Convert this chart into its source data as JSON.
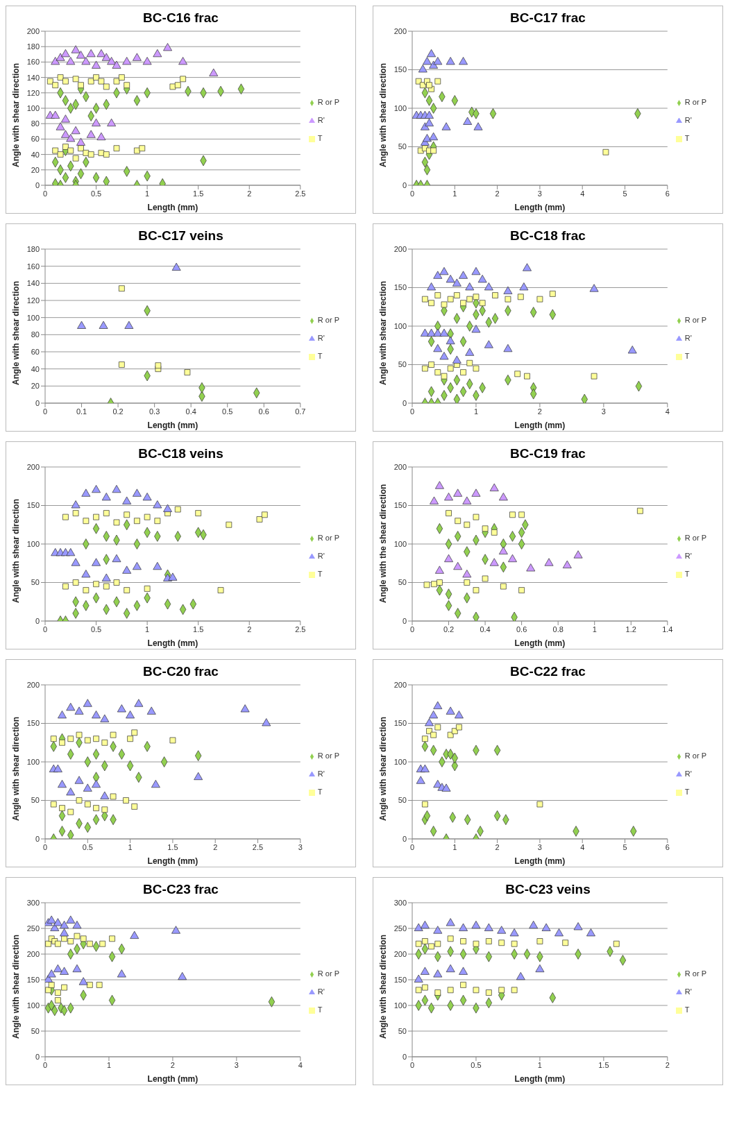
{
  "chart_data": [
    {
      "type": "scatter",
      "title": "BC-C16 frac",
      "xlabel": "Length (mm)",
      "ylabel": "Angle with shear direction",
      "xlim": [
        0,
        2.5
      ],
      "xticks": [
        0,
        0.5,
        1,
        1.5,
        2,
        2.5
      ],
      "ylim": [
        0,
        200
      ],
      "yticks": [
        0,
        20,
        40,
        60,
        80,
        100,
        120,
        140,
        160,
        180,
        200
      ],
      "grid": "y",
      "legend": "right",
      "series": [
        {
          "name": "R or P",
          "color": "#92d050",
          "marker": "diamond",
          "x": [
            0.15,
            0.2,
            0.25,
            0.3,
            0.35,
            0.4,
            0.45,
            0.5,
            0.6,
            0.7,
            0.8,
            0.9,
            1,
            1.4,
            1.55,
            1.72,
            1.92,
            0.1,
            0.15,
            0.2,
            0.25,
            0.3,
            0.35,
            0.4,
            0.5,
            0.6,
            0.8,
            1,
            1.15,
            1.55,
            0.15,
            0.3,
            0.9,
            0.2,
            0.1
          ],
          "values": [
            120,
            110,
            100,
            105,
            125,
            115,
            90,
            100,
            105,
            120,
            125,
            110,
            120,
            122,
            120,
            122,
            125,
            30,
            20,
            10,
            25,
            5,
            15,
            30,
            10,
            5,
            18,
            12,
            2,
            32,
            0,
            0,
            0,
            45,
            2
          ]
        },
        {
          "name": "T",
          "color": "#ffff99",
          "marker": "square",
          "x": [
            0.05,
            0.1,
            0.15,
            0.2,
            0.3,
            0.35,
            0.45,
            0.5,
            0.55,
            0.6,
            0.7,
            0.75,
            0.8,
            1.25,
            1.35,
            1.3,
            0.1,
            0.15,
            0.2,
            0.25,
            0.3,
            0.35,
            0.4,
            0.45,
            0.55,
            0.6,
            0.7,
            0.9,
            0.95
          ],
          "values": [
            135,
            130,
            140,
            135,
            138,
            130,
            135,
            140,
            135,
            128,
            135,
            140,
            130,
            128,
            138,
            130,
            45,
            40,
            50,
            45,
            35,
            48,
            42,
            40,
            42,
            40,
            48,
            45,
            48
          ]
        },
        {
          "name": "R'",
          "color": "#cc99ff",
          "marker": "triangle",
          "x": [
            0.05,
            0.1,
            0.1,
            0.15,
            0.2,
            0.25,
            0.3,
            0.35,
            0.4,
            0.45,
            0.5,
            0.55,
            0.6,
            0.65,
            0.7,
            0.8,
            0.9,
            1,
            1.1,
            1.2,
            1.35,
            1.65,
            0.15,
            0.2,
            0.25,
            0.3,
            0.35,
            0.45,
            0.5,
            0.55,
            0.65,
            0.2
          ],
          "values": [
            90,
            90,
            160,
            165,
            170,
            160,
            175,
            168,
            160,
            170,
            155,
            170,
            165,
            160,
            155,
            160,
            165,
            160,
            170,
            178,
            160,
            145,
            75,
            65,
            60,
            70,
            55,
            65,
            80,
            62,
            80,
            85
          ]
        }
      ]
    },
    {
      "type": "scatter",
      "title": "BC-C17 frac",
      "xlabel": "Length (mm)",
      "ylabel": "Angle with shear direction",
      "xlim": [
        0,
        6
      ],
      "xticks": [
        0,
        1,
        2,
        3,
        4,
        5,
        6
      ],
      "ylim": [
        0,
        200
      ],
      "yticks": [
        0,
        50,
        100,
        150,
        200
      ],
      "grid": "y",
      "legend": "right",
      "series": [
        {
          "name": "R or P",
          "color": "#92d050",
          "marker": "diamond",
          "x": [
            0.1,
            0.2,
            0.35,
            0.3,
            0.4,
            0.35,
            0.3,
            0.4,
            0.5,
            0.7,
            1,
            1.4,
            1.5,
            1.9,
            5.3,
            0.5
          ],
          "values": [
            0,
            0,
            0,
            30,
            40,
            20,
            120,
            110,
            100,
            115,
            110,
            95,
            93,
            93,
            93,
            50
          ]
        },
        {
          "name": "T",
          "color": "#ffff99",
          "marker": "square",
          "x": [
            0.15,
            0.25,
            0.35,
            0.45,
            0.4,
            0.6,
            0.2,
            0.3,
            0.4,
            0.5,
            4.55
          ],
          "values": [
            135,
            130,
            135,
            125,
            130,
            135,
            45,
            48,
            45,
            45,
            43
          ]
        },
        {
          "name": "R'",
          "color": "#9999ff",
          "marker": "triangle",
          "x": [
            0.1,
            0.2,
            0.3,
            0.4,
            0.3,
            0.35,
            0.3,
            0.25,
            0.35,
            0.45,
            0.5,
            0.6,
            0.9,
            1.2,
            0.8,
            1.3,
            1.55,
            0.5,
            0.4
          ],
          "values": [
            90,
            90,
            90,
            90,
            55,
            60,
            75,
            150,
            160,
            170,
            155,
            160,
            160,
            160,
            75,
            82,
            75,
            62,
            80
          ]
        }
      ]
    },
    {
      "type": "scatter",
      "title": "BC-C17 veins",
      "xlabel": "Length (mm)",
      "ylabel": "Angle with shear direction",
      "xlim": [
        0,
        0.7
      ],
      "xticks": [
        0,
        0.1,
        0.2,
        0.3,
        0.4,
        0.5,
        0.6,
        0.7
      ],
      "ylim": [
        0,
        180
      ],
      "yticks": [
        0,
        20,
        40,
        60,
        80,
        100,
        120,
        140,
        160,
        180
      ],
      "grid": "y",
      "legend": "right",
      "series": [
        {
          "name": "R or P",
          "color": "#92d050",
          "marker": "diamond",
          "x": [
            0.18,
            0.28,
            0.28,
            0.43,
            0.43,
            0.58
          ],
          "values": [
            0,
            32,
            108,
            8,
            18,
            12
          ]
        },
        {
          "name": "T",
          "color": "#ffff99",
          "marker": "square",
          "x": [
            0.21,
            0.21,
            0.31,
            0.31,
            0.39
          ],
          "values": [
            134,
            45,
            40,
            44,
            36
          ]
        },
        {
          "name": "R'",
          "color": "#9999ff",
          "marker": "triangle",
          "x": [
            0.1,
            0.16,
            0.23,
            0.36
          ],
          "values": [
            90,
            90,
            90,
            158
          ]
        }
      ]
    },
    {
      "type": "scatter",
      "title": "BC-C18 frac",
      "xlabel": "Length (mm)",
      "ylabel": "Angle with shear direction",
      "xlim": [
        0,
        4
      ],
      "xticks": [
        0,
        1,
        2,
        3,
        4
      ],
      "ylim": [
        0,
        200
      ],
      "yticks": [
        0,
        50,
        100,
        150,
        200
      ],
      "grid": "y",
      "legend": "right",
      "series": [
        {
          "name": "R or P",
          "color": "#92d050",
          "marker": "diamond",
          "x": [
            0.2,
            0.3,
            0.4,
            0.5,
            0.6,
            0.7,
            0.8,
            0.9,
            1,
            1.1,
            1.5,
            1.9,
            1.9,
            2.7,
            3.55,
            0.5,
            0.7,
            0.3,
            0.4,
            0.5,
            0.6,
            0.7,
            0.8,
            0.9,
            1,
            1.1,
            1.2,
            1.3,
            1.5,
            1.9,
            2.2,
            0.6,
            0.8,
            1,
            0.3
          ],
          "values": [
            0,
            0,
            0,
            10,
            20,
            30,
            15,
            25,
            10,
            20,
            30,
            20,
            12,
            5,
            22,
            30,
            5,
            15,
            100,
            120,
            90,
            110,
            125,
            100,
            115,
            120,
            105,
            110,
            120,
            118,
            115,
            70,
            80,
            130,
            80
          ]
        },
        {
          "name": "T",
          "color": "#ffff99",
          "marker": "square",
          "x": [
            0.2,
            0.3,
            0.4,
            0.5,
            0.6,
            0.7,
            0.8,
            0.9,
            1,
            1.1,
            1.3,
            1.5,
            1.7,
            2,
            2.2,
            0.2,
            0.3,
            0.4,
            0.5,
            0.6,
            0.7,
            0.8,
            0.9,
            1,
            1.65,
            1.8,
            2.85
          ],
          "values": [
            135,
            130,
            140,
            128,
            135,
            140,
            130,
            135,
            138,
            130,
            140,
            135,
            138,
            135,
            142,
            45,
            50,
            40,
            35,
            45,
            50,
            40,
            52,
            45,
            38,
            35,
            35
          ]
        },
        {
          "name": "R'",
          "color": "#9999ff",
          "marker": "triangle",
          "x": [
            0.2,
            0.3,
            0.4,
            0.5,
            0.3,
            0.4,
            0.5,
            0.6,
            0.7,
            0.8,
            0.9,
            1,
            1.1,
            1.2,
            1.5,
            1.8,
            1.75,
            2.85,
            0.4,
            0.5,
            0.6,
            0.7,
            0.9,
            1,
            1.2,
            1.5,
            3.45
          ],
          "values": [
            90,
            90,
            90,
            90,
            150,
            165,
            170,
            160,
            155,
            165,
            150,
            170,
            160,
            150,
            145,
            175,
            150,
            148,
            70,
            60,
            80,
            55,
            65,
            95,
            75,
            70,
            68
          ]
        }
      ]
    },
    {
      "type": "scatter",
      "title": "BC-C18 veins",
      "xlabel": "Length (mm)",
      "ylabel": "Angle with shear direction",
      "xlim": [
        0,
        2.5
      ],
      "xticks": [
        0,
        0.5,
        1,
        1.5,
        2,
        2.5
      ],
      "ylim": [
        0,
        200
      ],
      "yticks": [
        0,
        50,
        100,
        150,
        200
      ],
      "grid": "y",
      "legend": "right",
      "series": [
        {
          "name": "R or P",
          "color": "#92d050",
          "marker": "diamond",
          "x": [
            0.15,
            0.2,
            0.3,
            0.4,
            0.5,
            0.6,
            0.7,
            0.8,
            0.9,
            1,
            1.2,
            1.35,
            1.45,
            0.4,
            0.5,
            0.6,
            0.7,
            0.8,
            0.9,
            1,
            1.1,
            1.3,
            1.5,
            1.55,
            0.6,
            1.2,
            0.3
          ],
          "values": [
            0,
            0,
            10,
            20,
            30,
            15,
            25,
            10,
            20,
            30,
            22,
            15,
            22,
            100,
            120,
            110,
            105,
            125,
            100,
            115,
            110,
            110,
            115,
            112,
            80,
            60,
            25
          ]
        },
        {
          "name": "T",
          "color": "#ffff99",
          "marker": "square",
          "x": [
            0.2,
            0.3,
            0.4,
            0.5,
            0.6,
            0.7,
            0.8,
            0.9,
            1,
            1.1,
            1.2,
            1.3,
            1.5,
            1.8,
            2.1,
            2.15,
            0.2,
            0.3,
            0.4,
            0.5,
            0.6,
            0.7,
            0.8,
            1,
            1.72
          ],
          "values": [
            135,
            140,
            130,
            135,
            140,
            128,
            138,
            130,
            135,
            130,
            140,
            145,
            140,
            125,
            132,
            138,
            45,
            50,
            40,
            48,
            45,
            50,
            40,
            42,
            40
          ]
        },
        {
          "name": "R'",
          "color": "#9999ff",
          "marker": "triangle",
          "x": [
            0.1,
            0.15,
            0.2,
            0.25,
            0.3,
            0.4,
            0.5,
            0.6,
            0.7,
            0.8,
            0.9,
            1,
            1.1,
            1.2,
            0.4,
            0.5,
            0.6,
            0.7,
            0.8,
            0.9,
            1.1,
            1.2,
            1.25,
            0.3
          ],
          "values": [
            88,
            88,
            88,
            88,
            150,
            165,
            170,
            160,
            170,
            155,
            165,
            160,
            150,
            145,
            60,
            75,
            55,
            80,
            65,
            70,
            70,
            55,
            56,
            75
          ]
        }
      ]
    },
    {
      "type": "scatter",
      "title": "BC-C19 frac",
      "xlabel": "Length (mm)",
      "ylabel": "Angle with the shear direction",
      "xlim": [
        0,
        1.4
      ],
      "xticks": [
        0,
        0.2,
        0.4,
        0.6,
        0.8,
        1,
        1.2,
        1.4
      ],
      "ylim": [
        0,
        200
      ],
      "yticks": [
        0,
        50,
        100,
        150,
        200
      ],
      "grid": "y",
      "legend": "right",
      "series": [
        {
          "name": "R or P",
          "color": "#92d050",
          "marker": "diamond",
          "x": [
            0.15,
            0.2,
            0.25,
            0.3,
            0.35,
            0.4,
            0.45,
            0.5,
            0.55,
            0.6,
            0.62,
            0.2,
            0.25,
            0.3,
            0.35,
            0.2,
            0.15,
            0.56,
            0.4,
            0.5,
            0.6
          ],
          "values": [
            120,
            100,
            110,
            90,
            105,
            115,
            120,
            100,
            110,
            115,
            125,
            20,
            10,
            30,
            5,
            35,
            40,
            5,
            80,
            70,
            100
          ]
        },
        {
          "name": "T",
          "color": "#ffff99",
          "marker": "square",
          "x": [
            0.08,
            0.12,
            0.15,
            0.2,
            0.25,
            0.3,
            0.35,
            0.4,
            0.45,
            0.55,
            0.6,
            0.3,
            0.4,
            0.5,
            0.6,
            1.25,
            0.35
          ],
          "values": [
            47,
            48,
            50,
            140,
            130,
            125,
            135,
            120,
            115,
            138,
            138,
            50,
            55,
            45,
            40,
            143,
            40
          ]
        },
        {
          "name": "R'",
          "color": "#cc99ff",
          "marker": "triangle",
          "x": [
            0.12,
            0.15,
            0.2,
            0.25,
            0.3,
            0.35,
            0.45,
            0.5,
            0.2,
            0.25,
            0.3,
            0.15,
            0.45,
            0.5,
            0.55,
            0.65,
            0.75,
            0.85,
            0.91
          ],
          "values": [
            155,
            175,
            160,
            165,
            155,
            165,
            172,
            160,
            80,
            70,
            60,
            65,
            75,
            90,
            80,
            68,
            75,
            72,
            85
          ]
        }
      ]
    },
    {
      "type": "scatter",
      "title": "BC-C20 frac",
      "xlabel": "Length (mm)",
      "ylabel": "Angle with shear direction",
      "xlim": [
        0,
        3
      ],
      "xticks": [
        0,
        0.5,
        1,
        1.5,
        2,
        2.5,
        3
      ],
      "ylim": [
        0,
        200
      ],
      "yticks": [
        0,
        50,
        100,
        150,
        200
      ],
      "grid": "y",
      "legend": "right",
      "series": [
        {
          "name": "R or P",
          "color": "#92d050",
          "marker": "diamond",
          "x": [
            0.1,
            0.2,
            0.3,
            0.4,
            0.5,
            0.6,
            0.7,
            0.8,
            0.2,
            0.1,
            0.2,
            0.3,
            0.4,
            0.5,
            0.6,
            0.7,
            0.8,
            0.9,
            1,
            1.2,
            1.4,
            1.8,
            1.1,
            0.6
          ],
          "values": [
            0,
            10,
            5,
            20,
            15,
            25,
            30,
            25,
            30,
            120,
            130,
            110,
            125,
            100,
            110,
            95,
            120,
            110,
            95,
            120,
            100,
            108,
            80,
            80
          ]
        },
        {
          "name": "T",
          "color": "#ffff99",
          "marker": "square",
          "x": [
            0.1,
            0.2,
            0.3,
            0.4,
            0.5,
            0.6,
            0.7,
            0.8,
            1,
            1.05,
            1.5,
            0.1,
            0.2,
            0.3,
            0.4,
            0.5,
            0.6,
            0.7,
            0.95,
            1.05,
            0.8
          ],
          "values": [
            130,
            125,
            130,
            135,
            128,
            130,
            125,
            135,
            130,
            138,
            128,
            45,
            40,
            35,
            50,
            45,
            40,
            38,
            50,
            42,
            55
          ]
        },
        {
          "name": "R'",
          "color": "#9999ff",
          "marker": "triangle",
          "x": [
            0.1,
            0.15,
            0.2,
            0.3,
            0.4,
            0.5,
            0.6,
            0.7,
            0.9,
            1,
            1.1,
            1.25,
            2.35,
            2.6,
            0.2,
            0.3,
            0.4,
            0.5,
            0.6,
            0.7,
            1.3,
            1.8
          ],
          "values": [
            90,
            90,
            160,
            170,
            165,
            175,
            160,
            155,
            168,
            160,
            175,
            165,
            168,
            150,
            70,
            60,
            75,
            65,
            70,
            55,
            70,
            80
          ]
        }
      ]
    },
    {
      "type": "scatter",
      "title": "BC-C22 frac",
      "xlabel": "Length (mm)",
      "ylabel": "Angle with shear direction",
      "xlim": [
        0,
        6
      ],
      "xticks": [
        0,
        1,
        2,
        3,
        4,
        5,
        6
      ],
      "ylim": [
        0,
        200
      ],
      "yticks": [
        0,
        50,
        100,
        150,
        200
      ],
      "grid": "y",
      "legend": "right",
      "series": [
        {
          "name": "R or P",
          "color": "#92d050",
          "marker": "diamond",
          "x": [
            0.3,
            0.35,
            0.5,
            0.8,
            0.95,
            1.3,
            1.5,
            1.6,
            2,
            2.2,
            3.85,
            5.2,
            0.3,
            0.5,
            0.7,
            0.8,
            0.9,
            1,
            1.5,
            2,
            1
          ],
          "values": [
            25,
            30,
            10,
            0,
            28,
            25,
            0,
            10,
            30,
            25,
            10,
            10,
            120,
            115,
            100,
            110,
            110,
            95,
            115,
            115,
            105
          ]
        },
        {
          "name": "T",
          "color": "#ffff99",
          "marker": "square",
          "x": [
            0.3,
            0.4,
            0.5,
            0.6,
            0.9,
            1,
            1.1,
            0.3,
            3
          ],
          "values": [
            130,
            140,
            135,
            145,
            135,
            140,
            145,
            45,
            45
          ]
        },
        {
          "name": "R'",
          "color": "#9999ff",
          "marker": "triangle",
          "x": [
            0.2,
            0.3,
            0.2,
            0.5,
            0.6,
            0.9,
            1.1,
            0.4,
            0.6,
            0.7,
            0.8
          ],
          "values": [
            90,
            90,
            75,
            160,
            172,
            165,
            160,
            150,
            70,
            66,
            65
          ]
        }
      ]
    },
    {
      "type": "scatter",
      "title": "BC-C23 frac",
      "xlabel": "Length (mm)",
      "ylabel": "Angle with shear direction",
      "xlim": [
        0,
        4
      ],
      "xticks": [
        0,
        1,
        2,
        3,
        4
      ],
      "ylim": [
        0,
        300
      ],
      "yticks": [
        0,
        50,
        100,
        150,
        200,
        250,
        300
      ],
      "grid": "y",
      "legend": "right",
      "series": [
        {
          "name": "R or P",
          "color": "#92d050",
          "marker": "diamond",
          "x": [
            0.05,
            0.1,
            0.15,
            0.25,
            0.3,
            0.4,
            0.1,
            0.6,
            1.05,
            3.55,
            0.4,
            0.5,
            0.6,
            0.8,
            1.05,
            1.2
          ],
          "values": [
            95,
            100,
            90,
            95,
            90,
            95,
            130,
            120,
            110,
            107,
            200,
            210,
            220,
            215,
            195,
            210
          ]
        },
        {
          "name": "T",
          "color": "#ffff99",
          "marker": "square",
          "x": [
            0.05,
            0.1,
            0.15,
            0.2,
            0.3,
            0.4,
            0.5,
            0.6,
            0.7,
            0.9,
            1.05,
            0.05,
            0.1,
            0.2,
            0.3,
            0.7,
            0.85,
            0.2
          ],
          "values": [
            220,
            230,
            225,
            220,
            230,
            225,
            235,
            230,
            220,
            220,
            230,
            130,
            140,
            125,
            135,
            140,
            140,
            110
          ]
        },
        {
          "name": "R'",
          "color": "#9999ff",
          "marker": "triangle",
          "x": [
            0.05,
            0.1,
            0.15,
            0.2,
            0.3,
            0.4,
            0.5,
            0.3,
            1.4,
            2.05,
            0.05,
            0.1,
            0.2,
            0.3,
            0.5,
            0.6,
            1.2,
            2.15
          ],
          "values": [
            260,
            265,
            250,
            260,
            255,
            265,
            255,
            240,
            235,
            245,
            150,
            160,
            170,
            165,
            170,
            145,
            160,
            155
          ]
        }
      ]
    },
    {
      "type": "scatter",
      "title": "BC-C23 veins",
      "xlabel": "Length (mm)",
      "ylabel": "Angle with shear direction",
      "xlim": [
        0,
        2
      ],
      "xticks": [
        0,
        0.5,
        1,
        1.5,
        2
      ],
      "ylim": [
        0,
        300
      ],
      "yticks": [
        0,
        50,
        100,
        150,
        200,
        250,
        300
      ],
      "grid": "y",
      "legend": "right",
      "series": [
        {
          "name": "R or P",
          "color": "#92d050",
          "marker": "diamond",
          "x": [
            0.05,
            0.1,
            0.15,
            0.2,
            0.3,
            0.4,
            0.5,
            0.6,
            0.7,
            1.1,
            0.05,
            0.1,
            0.2,
            0.3,
            0.4,
            0.5,
            0.6,
            0.8,
            0.9,
            1,
            1.3,
            1.55,
            1.65
          ],
          "values": [
            100,
            110,
            95,
            120,
            100,
            110,
            95,
            105,
            120,
            115,
            200,
            210,
            195,
            205,
            200,
            210,
            195,
            200,
            200,
            195,
            200,
            205,
            188
          ]
        },
        {
          "name": "T",
          "color": "#ffff99",
          "marker": "square",
          "x": [
            0.05,
            0.1,
            0.15,
            0.2,
            0.3,
            0.4,
            0.5,
            0.6,
            0.7,
            0.8,
            1,
            1.2,
            1.6,
            0.05,
            0.1,
            0.2,
            0.3,
            0.4,
            0.5,
            0.6,
            0.7,
            0.8
          ],
          "values": [
            220,
            225,
            215,
            220,
            230,
            225,
            220,
            225,
            222,
            220,
            225,
            222,
            220,
            130,
            135,
            125,
            130,
            140,
            130,
            125,
            130,
            130
          ]
        },
        {
          "name": "R'",
          "color": "#9999ff",
          "marker": "triangle",
          "x": [
            0.05,
            0.1,
            0.2,
            0.3,
            0.4,
            0.5,
            0.6,
            0.7,
            0.8,
            0.95,
            1.05,
            1.15,
            1.3,
            1.4,
            0.05,
            0.1,
            0.2,
            0.3,
            0.4,
            0.85,
            1
          ],
          "values": [
            250,
            255,
            245,
            260,
            250,
            255,
            250,
            245,
            240,
            255,
            250,
            240,
            252,
            240,
            150,
            165,
            160,
            170,
            165,
            155,
            170
          ]
        }
      ]
    }
  ]
}
